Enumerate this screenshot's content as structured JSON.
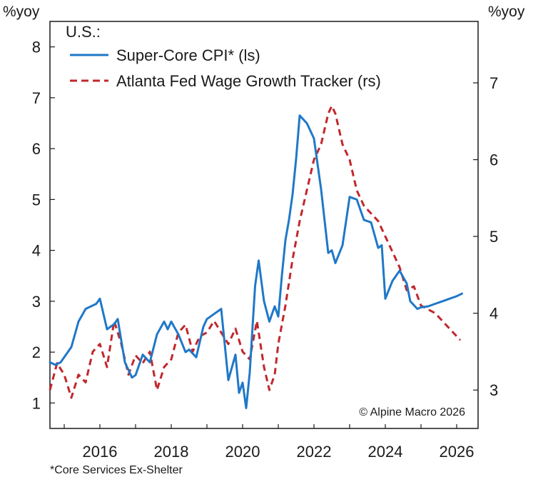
{
  "chart_data": {
    "type": "line",
    "region_label": "U.S.:",
    "y_left_label": "%yoy",
    "y_right_label": "%yoy",
    "xlim": [
      2014.6,
      2026.6
    ],
    "ylim_left": [
      0.5,
      8.5
    ],
    "ylim_right": [
      2.5,
      7.8
    ],
    "x_ticks": [
      2016,
      2018,
      2020,
      2022,
      2024,
      2026
    ],
    "x_tick_labels": [
      "2016",
      "2018",
      "2020",
      "2022",
      "2024",
      "2026"
    ],
    "y_left_ticks": [
      1,
      2,
      3,
      4,
      5,
      6,
      7,
      8
    ],
    "y_left_tick_labels": [
      "1",
      "2",
      "3",
      "4",
      "5",
      "6",
      "7",
      "8"
    ],
    "y_right_ticks": [
      3,
      4,
      5,
      6,
      7
    ],
    "y_right_tick_labels": [
      "3",
      "4",
      "5",
      "6",
      "7"
    ],
    "series": [
      {
        "name": "Super-Core CPI* (ls)",
        "axis": "left",
        "color": "#1f78c8",
        "style": "solid",
        "x": [
          2014.6,
          2014.75,
          2014.9,
          2015.0,
          2015.2,
          2015.4,
          2015.6,
          2015.75,
          2015.9,
          2016.0,
          2016.2,
          2016.4,
          2016.5,
          2016.7,
          2016.9,
          2017.0,
          2017.2,
          2017.4,
          2017.6,
          2017.8,
          2017.9,
          2018.0,
          2018.2,
          2018.4,
          2018.5,
          2018.7,
          2018.9,
          2019.0,
          2019.2,
          2019.4,
          2019.6,
          2019.8,
          2019.9,
          2020.0,
          2020.1,
          2020.2,
          2020.35,
          2020.45,
          2020.6,
          2020.75,
          2020.9,
          2021.0,
          2021.1,
          2021.2,
          2021.3,
          2021.4,
          2021.5,
          2021.6,
          2021.8,
          2022.0,
          2022.2,
          2022.4,
          2022.5,
          2022.6,
          2022.8,
          2023.0,
          2023.2,
          2023.4,
          2023.6,
          2023.8,
          2023.9,
          2024.0,
          2024.2,
          2024.4,
          2024.6,
          2024.7,
          2024.9,
          2025.0,
          2025.2,
          2025.4,
          2025.6,
          2025.8,
          2026.0,
          2026.15
        ],
        "y": [
          1.8,
          1.75,
          1.8,
          1.9,
          2.1,
          2.6,
          2.85,
          2.9,
          2.95,
          3.05,
          2.45,
          2.55,
          2.65,
          1.8,
          1.5,
          1.55,
          1.95,
          1.8,
          2.35,
          2.6,
          2.45,
          2.6,
          2.35,
          2.0,
          2.05,
          1.9,
          2.5,
          2.65,
          2.75,
          2.85,
          1.45,
          1.95,
          1.2,
          1.4,
          0.9,
          1.6,
          3.3,
          3.8,
          3.0,
          2.6,
          2.9,
          2.7,
          3.5,
          4.2,
          4.6,
          5.1,
          5.8,
          6.65,
          6.5,
          6.2,
          5.2,
          3.95,
          4.0,
          3.75,
          4.1,
          5.05,
          5.0,
          4.6,
          4.55,
          4.05,
          4.1,
          3.05,
          3.4,
          3.6,
          3.35,
          3.0,
          2.85,
          2.88,
          2.9,
          2.95,
          3.0,
          3.05,
          3.1,
          3.15
        ]
      },
      {
        "name": "Atlanta Fed Wage Growth Tracker (rs)",
        "axis": "right",
        "color": "#c1272d",
        "style": "dashed",
        "x": [
          2014.6,
          2014.8,
          2015.0,
          2015.2,
          2015.4,
          2015.6,
          2015.8,
          2016.0,
          2016.2,
          2016.4,
          2016.6,
          2016.8,
          2017.0,
          2017.2,
          2017.4,
          2017.6,
          2017.8,
          2018.0,
          2018.2,
          2018.4,
          2018.6,
          2018.8,
          2019.0,
          2019.2,
          2019.4,
          2019.6,
          2019.8,
          2020.0,
          2020.2,
          2020.4,
          2020.6,
          2020.75,
          2020.9,
          2021.0,
          2021.2,
          2021.4,
          2021.6,
          2021.8,
          2022.0,
          2022.2,
          2022.4,
          2022.5,
          2022.6,
          2022.8,
          2023.0,
          2023.2,
          2023.4,
          2023.6,
          2023.8,
          2024.0,
          2024.2,
          2024.4,
          2024.6,
          2024.8,
          2025.0,
          2025.2,
          2025.4,
          2025.6,
          2025.8,
          2026.0,
          2026.1
        ],
        "y": [
          3.0,
          3.35,
          3.2,
          2.9,
          3.2,
          3.1,
          3.5,
          3.6,
          3.3,
          3.9,
          3.6,
          3.2,
          3.45,
          3.35,
          3.5,
          3.0,
          3.3,
          3.4,
          3.75,
          3.85,
          3.5,
          3.7,
          3.75,
          3.9,
          3.75,
          3.6,
          3.8,
          3.5,
          3.4,
          3.9,
          3.3,
          3.0,
          3.2,
          3.6,
          4.1,
          4.7,
          5.2,
          5.6,
          6.0,
          6.2,
          6.6,
          6.7,
          6.6,
          6.2,
          6.0,
          5.6,
          5.4,
          5.3,
          5.2,
          5.0,
          4.8,
          4.6,
          4.3,
          4.35,
          4.1,
          4.05,
          4.0,
          3.9,
          3.8,
          3.7,
          3.65
        ]
      }
    ]
  },
  "legend": {
    "header": "U.S.:",
    "items": [
      "Super-Core CPI* (ls)",
      "Atlanta Fed Wage Growth Tracker (rs)"
    ]
  },
  "copyright": "© Alpine Macro 2026",
  "footnote": "*Core Services Ex-Shelter",
  "unit_left": "%yoy",
  "unit_right": "%yoy"
}
